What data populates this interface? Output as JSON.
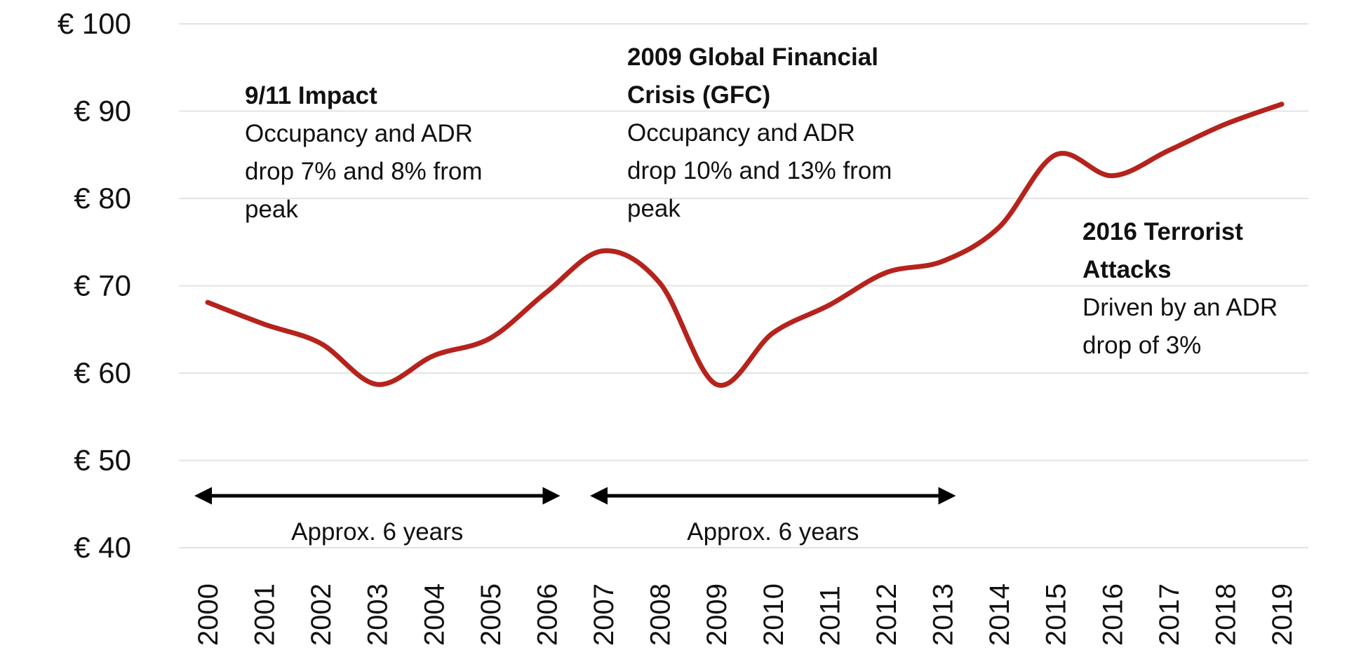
{
  "chart_data": {
    "type": "line",
    "title": "",
    "xlabel": "",
    "ylabel": "",
    "x": [
      "2000",
      "2001",
      "2002",
      "2003",
      "2004",
      "2005",
      "2006",
      "2007",
      "2008",
      "2009",
      "2010",
      "2011",
      "2012",
      "2013",
      "2014",
      "2015",
      "2016",
      "2017",
      "2018",
      "2019"
    ],
    "series": [
      {
        "values": [
          68.1,
          65.6,
          63.4,
          58.7,
          62.0,
          64.0,
          69.3,
          74.0,
          70.3,
          58.7,
          64.6,
          67.8,
          71.5,
          72.8,
          76.7,
          85.0,
          82.6,
          85.5,
          88.5,
          90.8
        ],
        "color": "#b5231c"
      }
    ],
    "ylim": [
      40,
      100
    ],
    "y_ticks": [
      "€ 40",
      "€ 50",
      "€ 60",
      "€ 70",
      "€ 80",
      "€ 90",
      "€ 100"
    ],
    "grid": true,
    "annotations": [
      {
        "title": [
          "9/11 Impact"
        ],
        "body": [
          "Occupancy and ADR",
          "drop 7% and 8% from",
          "peak"
        ]
      },
      {
        "title": [
          "2009 Global Financial",
          "Crisis (GFC)"
        ],
        "body": [
          "Occupancy and ADR",
          "drop 10% and 13% from",
          "peak"
        ]
      },
      {
        "title": [
          "2016 Terrorist",
          "Attacks"
        ],
        "body": [
          "Driven by an ADR",
          "drop of 3%"
        ]
      }
    ],
    "spans": [
      {
        "from": "2000",
        "to": "2006",
        "label": "Approx. 6 years"
      },
      {
        "from": "2007",
        "to": "2013",
        "label": "Approx. 6 years"
      }
    ]
  }
}
